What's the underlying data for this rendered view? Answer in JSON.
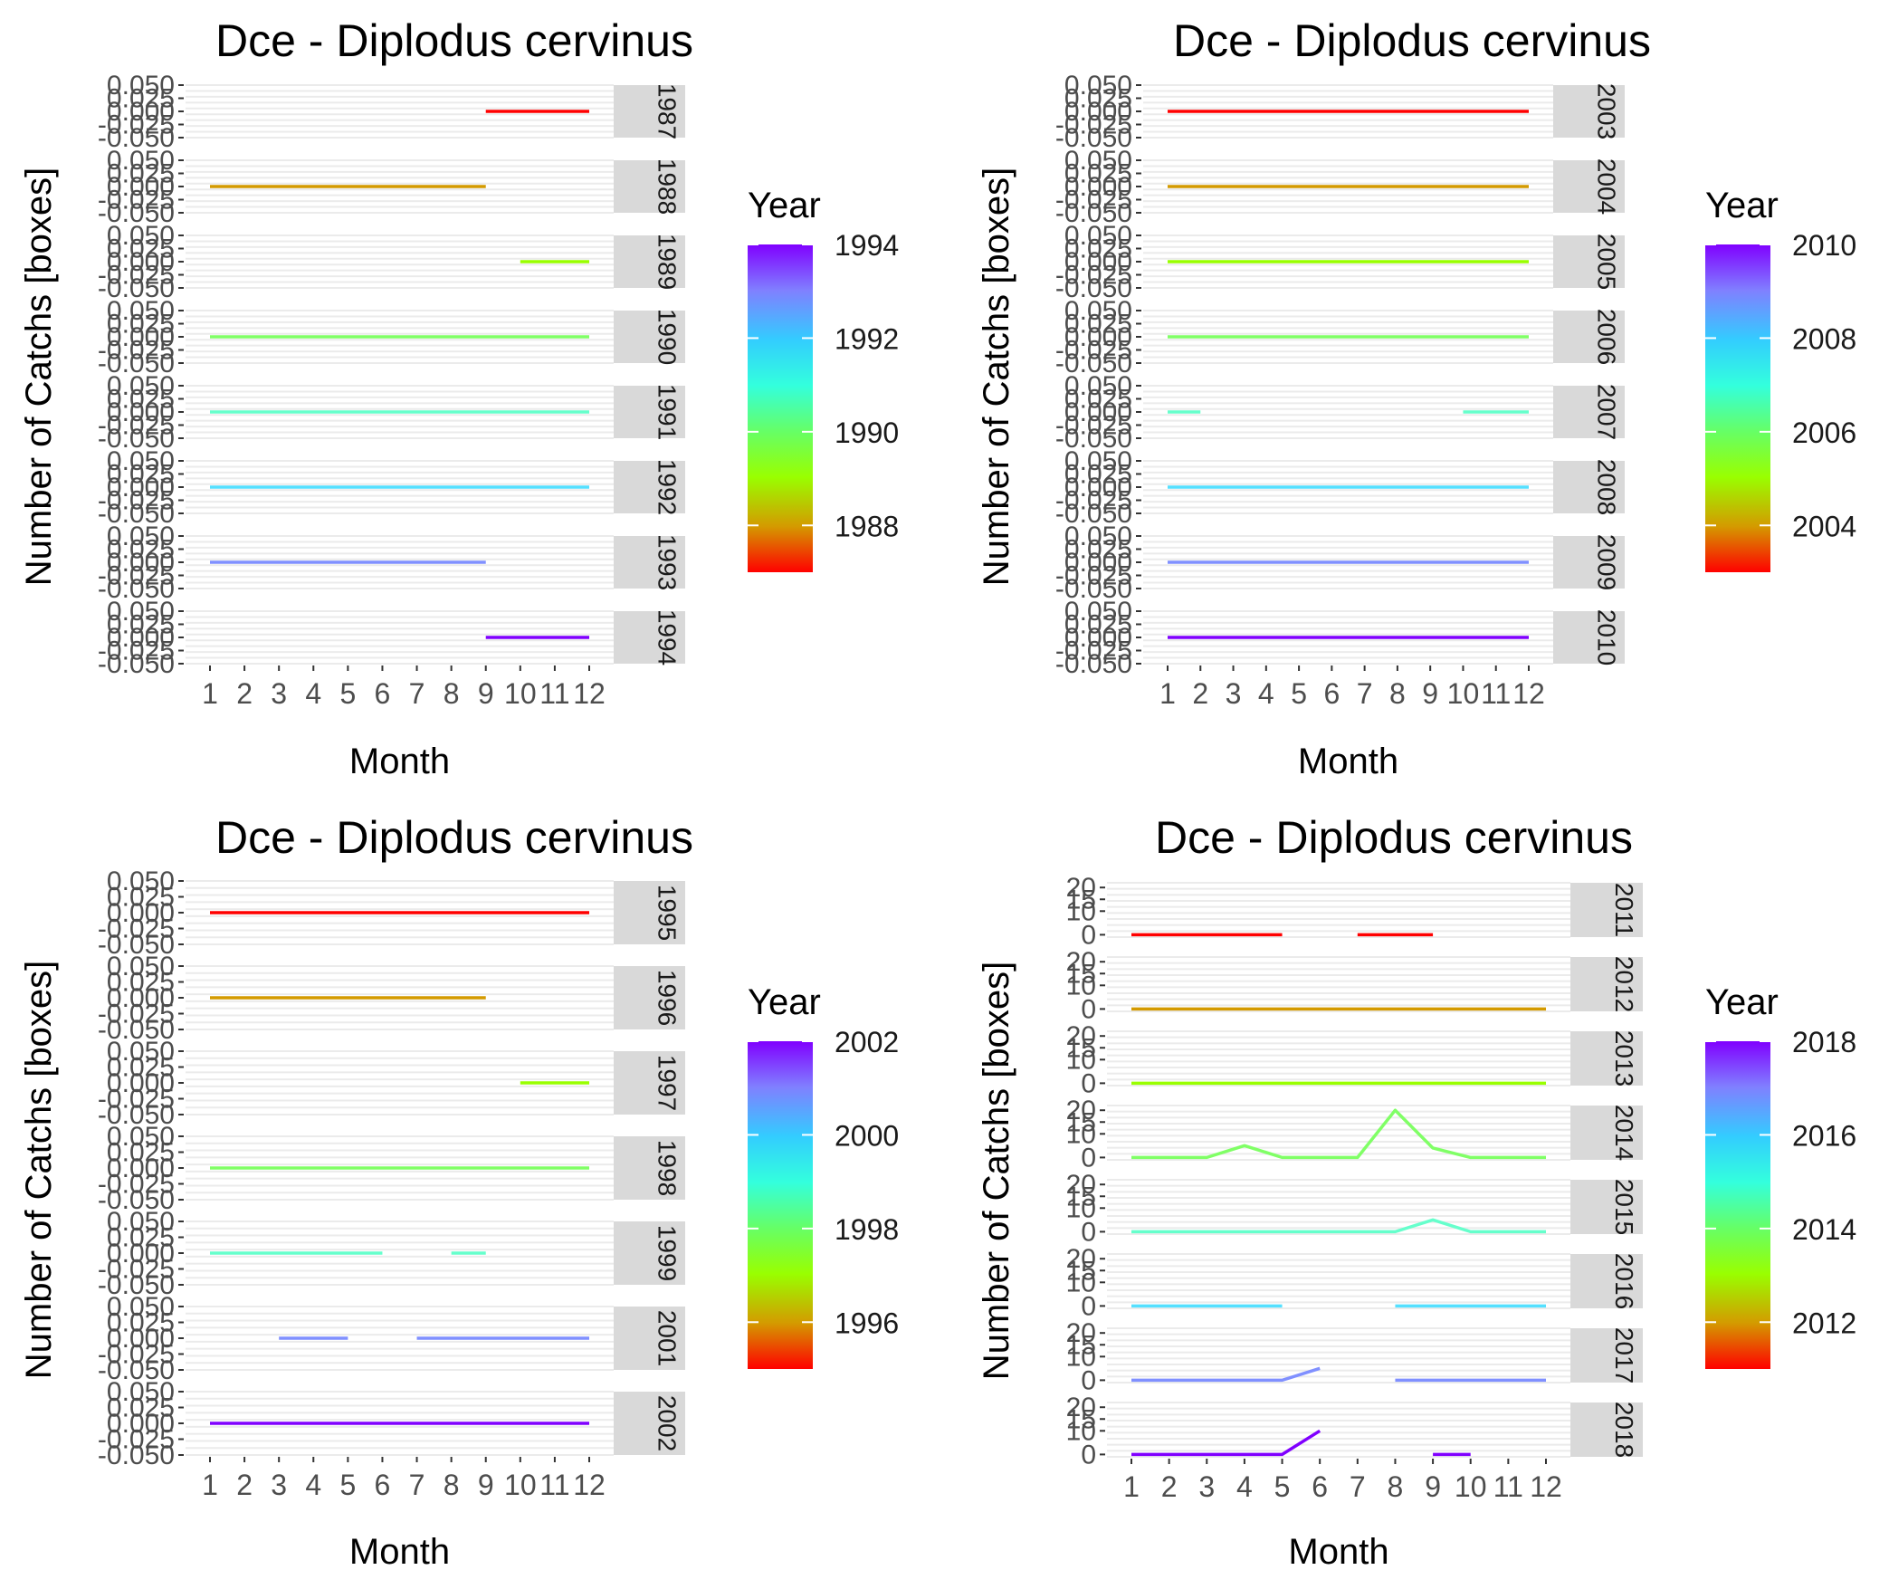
{
  "chart_data": [
    {
      "type": "line",
      "title": "Dce - Diplodus cervinus",
      "xlabel": "Month",
      "ylabel": "Number of Catchs [boxes]",
      "x_ticks": [
        "1",
        "2",
        "3",
        "4",
        "5",
        "6",
        "7",
        "8",
        "9",
        "10",
        "11",
        "12"
      ],
      "y_ticks": [
        "-0.050",
        "-0.025",
        "0.000",
        "0.025",
        "0.050"
      ],
      "ylim": [
        -0.05,
        0.05
      ],
      "grid": true,
      "legend": {
        "title": "Year",
        "position": "right",
        "min": 1987,
        "max": 1994,
        "ticks": [
          "1988",
          "1990",
          "1992",
          "1994"
        ]
      },
      "panels": [
        {
          "label": "1987",
          "year": 1987,
          "color": "#ff0000",
          "segments": [
            [
              [
                9,
                0
              ],
              [
                10,
                0
              ],
              [
                11,
                0
              ],
              [
                12,
                0
              ]
            ]
          ]
        },
        {
          "label": "1988",
          "year": 1988,
          "color": "#d49a00",
          "segments": [
            [
              [
                1,
                0
              ],
              [
                2,
                0
              ],
              [
                3,
                0
              ],
              [
                4,
                0
              ],
              [
                5,
                0
              ],
              [
                6,
                0
              ],
              [
                7,
                0
              ],
              [
                8,
                0
              ],
              [
                9,
                0
              ]
            ]
          ]
        },
        {
          "label": "1989",
          "year": 1989,
          "color": "#99ff00",
          "segments": [
            [
              [
                10,
                0
              ],
              [
                11,
                0
              ],
              [
                12,
                0
              ]
            ]
          ]
        },
        {
          "label": "1990",
          "year": 1990,
          "color": "#80ff66",
          "segments": [
            [
              [
                1,
                0
              ],
              [
                12,
                0
              ]
            ]
          ]
        },
        {
          "label": "1991",
          "year": 1991,
          "color": "#66ffcc",
          "segments": [
            [
              [
                1,
                0
              ],
              [
                12,
                0
              ]
            ]
          ]
        },
        {
          "label": "1992",
          "year": 1992,
          "color": "#55e0ff",
          "segments": [
            [
              [
                1,
                0
              ],
              [
                12,
                0
              ]
            ]
          ]
        },
        {
          "label": "1993",
          "year": 1993,
          "color": "#8090ff",
          "segments": [
            [
              [
                1,
                0
              ],
              [
                9,
                0
              ]
            ]
          ]
        },
        {
          "label": "1994",
          "year": 1994,
          "color": "#8000ff",
          "segments": [
            [
              [
                9,
                0
              ],
              [
                12,
                0
              ]
            ]
          ]
        }
      ]
    },
    {
      "type": "line",
      "title": "Dce - Diplodus cervinus",
      "xlabel": "Month",
      "ylabel": "Number of Catchs [boxes]",
      "x_ticks": [
        "1",
        "2",
        "3",
        "4",
        "5",
        "6",
        "7",
        "8",
        "9",
        "10",
        "11",
        "12"
      ],
      "y_ticks": [
        "-0.050",
        "-0.025",
        "0.000",
        "0.025",
        "0.050"
      ],
      "ylim": [
        -0.05,
        0.05
      ],
      "grid": true,
      "legend": {
        "title": "Year",
        "position": "right",
        "min": 2003,
        "max": 2010,
        "ticks": [
          "2004",
          "2006",
          "2008",
          "2010"
        ]
      },
      "panels": [
        {
          "label": "2003",
          "year": 2003,
          "color": "#ff0000",
          "segments": [
            [
              [
                1,
                0
              ],
              [
                12,
                0
              ]
            ]
          ]
        },
        {
          "label": "2004",
          "year": 2004,
          "color": "#d49a00",
          "segments": [
            [
              [
                1,
                0
              ],
              [
                12,
                0
              ]
            ]
          ]
        },
        {
          "label": "2005",
          "year": 2005,
          "color": "#99ff00",
          "segments": [
            [
              [
                1,
                0
              ],
              [
                12,
                0
              ]
            ]
          ]
        },
        {
          "label": "2006",
          "year": 2006,
          "color": "#80ff66",
          "segments": [
            [
              [
                1,
                0
              ],
              [
                12,
                0
              ]
            ]
          ]
        },
        {
          "label": "2007",
          "year": 2007,
          "color": "#66ffcc",
          "segments": [
            [
              [
                1,
                0
              ],
              [
                2,
                0
              ]
            ],
            [
              [
                10,
                0
              ],
              [
                12,
                0
              ]
            ]
          ]
        },
        {
          "label": "2008",
          "year": 2008,
          "color": "#55e0ff",
          "segments": [
            [
              [
                1,
                0
              ],
              [
                12,
                0
              ]
            ]
          ]
        },
        {
          "label": "2009",
          "year": 2009,
          "color": "#8090ff",
          "segments": [
            [
              [
                1,
                0
              ],
              [
                12,
                0
              ]
            ]
          ]
        },
        {
          "label": "2010",
          "year": 2010,
          "color": "#8000ff",
          "segments": [
            [
              [
                1,
                0
              ],
              [
                12,
                0
              ]
            ]
          ]
        }
      ]
    },
    {
      "type": "line",
      "title": "Dce - Diplodus cervinus",
      "xlabel": "Month",
      "ylabel": "Number of Catchs [boxes]",
      "x_ticks": [
        "1",
        "2",
        "3",
        "4",
        "5",
        "6",
        "7",
        "8",
        "9",
        "10",
        "11",
        "12"
      ],
      "y_ticks": [
        "-0.050",
        "-0.025",
        "0.000",
        "0.025",
        "0.050"
      ],
      "ylim": [
        -0.05,
        0.05
      ],
      "grid": true,
      "legend": {
        "title": "Year",
        "position": "right",
        "min": 1995,
        "max": 2002,
        "ticks": [
          "1996",
          "1998",
          "2000",
          "2002"
        ]
      },
      "panels": [
        {
          "label": "1995",
          "year": 1995,
          "color": "#ff0000",
          "segments": [
            [
              [
                1,
                0
              ],
              [
                12,
                0
              ]
            ]
          ]
        },
        {
          "label": "1996",
          "year": 1996,
          "color": "#d49a00",
          "segments": [
            [
              [
                1,
                0
              ],
              [
                9,
                0
              ]
            ]
          ]
        },
        {
          "label": "1997",
          "year": 1997,
          "color": "#99ff00",
          "segments": [
            [
              [
                10,
                0
              ],
              [
                12,
                0
              ]
            ]
          ]
        },
        {
          "label": "1998",
          "year": 1998,
          "color": "#80ff66",
          "segments": [
            [
              [
                1,
                0
              ],
              [
                12,
                0
              ]
            ]
          ]
        },
        {
          "label": "1999",
          "year": 1999,
          "color": "#66ffcc",
          "segments": [
            [
              [
                1,
                0
              ],
              [
                6,
                0
              ]
            ],
            [
              [
                8,
                0
              ],
              [
                9,
                0
              ]
            ]
          ]
        },
        {
          "label": "2001",
          "year": 2001,
          "color": "#8090ff",
          "segments": [
            [
              [
                3,
                0
              ],
              [
                5,
                0
              ]
            ],
            [
              [
                7,
                0
              ],
              [
                12,
                0
              ]
            ]
          ]
        },
        {
          "label": "2002",
          "year": 2002,
          "color": "#8000ff",
          "segments": [
            [
              [
                1,
                0
              ],
              [
                12,
                0
              ]
            ]
          ]
        }
      ]
    },
    {
      "type": "line",
      "title": "Dce - Diplodus cervinus",
      "xlabel": "Month",
      "ylabel": "Number of Catchs [boxes]",
      "x_ticks": [
        "1",
        "2",
        "3",
        "4",
        "5",
        "6",
        "7",
        "8",
        "9",
        "10",
        "11",
        "12"
      ],
      "y_ticks": [
        "0",
        "10",
        "15",
        "20"
      ],
      "ylim": [
        -1,
        22
      ],
      "grid": true,
      "legend": {
        "title": "Year",
        "position": "right",
        "min": 2011,
        "max": 2018,
        "ticks": [
          "2012",
          "2014",
          "2016",
          "2018"
        ]
      },
      "panels": [
        {
          "label": "2011",
          "year": 2011,
          "color": "#ff0000",
          "segments": [
            [
              [
                1,
                0
              ],
              [
                2,
                0
              ],
              [
                3,
                0
              ],
              [
                4,
                0
              ],
              [
                5,
                0
              ]
            ],
            [
              [
                7,
                0
              ],
              [
                8,
                0
              ],
              [
                9,
                0
              ]
            ]
          ]
        },
        {
          "label": "2012",
          "year": 2012,
          "color": "#d49a00",
          "segments": [
            [
              [
                1,
                0
              ],
              [
                12,
                0
              ]
            ]
          ]
        },
        {
          "label": "2013",
          "year": 2013,
          "color": "#99ff00",
          "segments": [
            [
              [
                1,
                0
              ],
              [
                12,
                0
              ]
            ]
          ]
        },
        {
          "label": "2014",
          "year": 2014,
          "color": "#80ff66",
          "segments": [
            [
              [
                1,
                0
              ],
              [
                2,
                0
              ],
              [
                3,
                0
              ],
              [
                4,
                5
              ],
              [
                5,
                0
              ],
              [
                6,
                0
              ],
              [
                7,
                0
              ],
              [
                8,
                20
              ],
              [
                9,
                4
              ],
              [
                10,
                0
              ],
              [
                11,
                0
              ],
              [
                12,
                0
              ]
            ]
          ]
        },
        {
          "label": "2015",
          "year": 2015,
          "color": "#66ffcc",
          "segments": [
            [
              [
                1,
                0
              ],
              [
                2,
                0
              ],
              [
                3,
                0
              ],
              [
                4,
                0
              ],
              [
                5,
                0
              ],
              [
                6,
                0
              ],
              [
                7,
                0
              ],
              [
                8,
                0
              ],
              [
                9,
                5
              ],
              [
                10,
                0
              ],
              [
                11,
                0
              ],
              [
                12,
                0
              ]
            ]
          ]
        },
        {
          "label": "2016",
          "year": 2016,
          "color": "#55e0ff",
          "segments": [
            [
              [
                1,
                0
              ],
              [
                5,
                0
              ]
            ],
            [
              [
                8,
                0
              ],
              [
                12,
                0
              ]
            ]
          ]
        },
        {
          "label": "2017",
          "year": 2017,
          "color": "#8090ff",
          "segments": [
            [
              [
                1,
                0
              ],
              [
                2,
                0
              ],
              [
                3,
                0
              ],
              [
                4,
                0
              ],
              [
                5,
                0
              ],
              [
                6,
                5
              ]
            ],
            [
              [
                8,
                0
              ],
              [
                12,
                0
              ]
            ]
          ]
        },
        {
          "label": "2018",
          "year": 2018,
          "color": "#8000ff",
          "segments": [
            [
              [
                1,
                0
              ],
              [
                2,
                0
              ],
              [
                3,
                0
              ],
              [
                4,
                0
              ],
              [
                5,
                0
              ],
              [
                6,
                10
              ]
            ],
            [
              [
                9,
                0
              ],
              [
                10,
                0
              ]
            ]
          ]
        }
      ]
    }
  ],
  "colorbar_colors": [
    "#ff0000",
    "#d49a00",
    "#99ff00",
    "#66ff66",
    "#33ffdd",
    "#33ccff",
    "#8080ff",
    "#8000ff"
  ]
}
